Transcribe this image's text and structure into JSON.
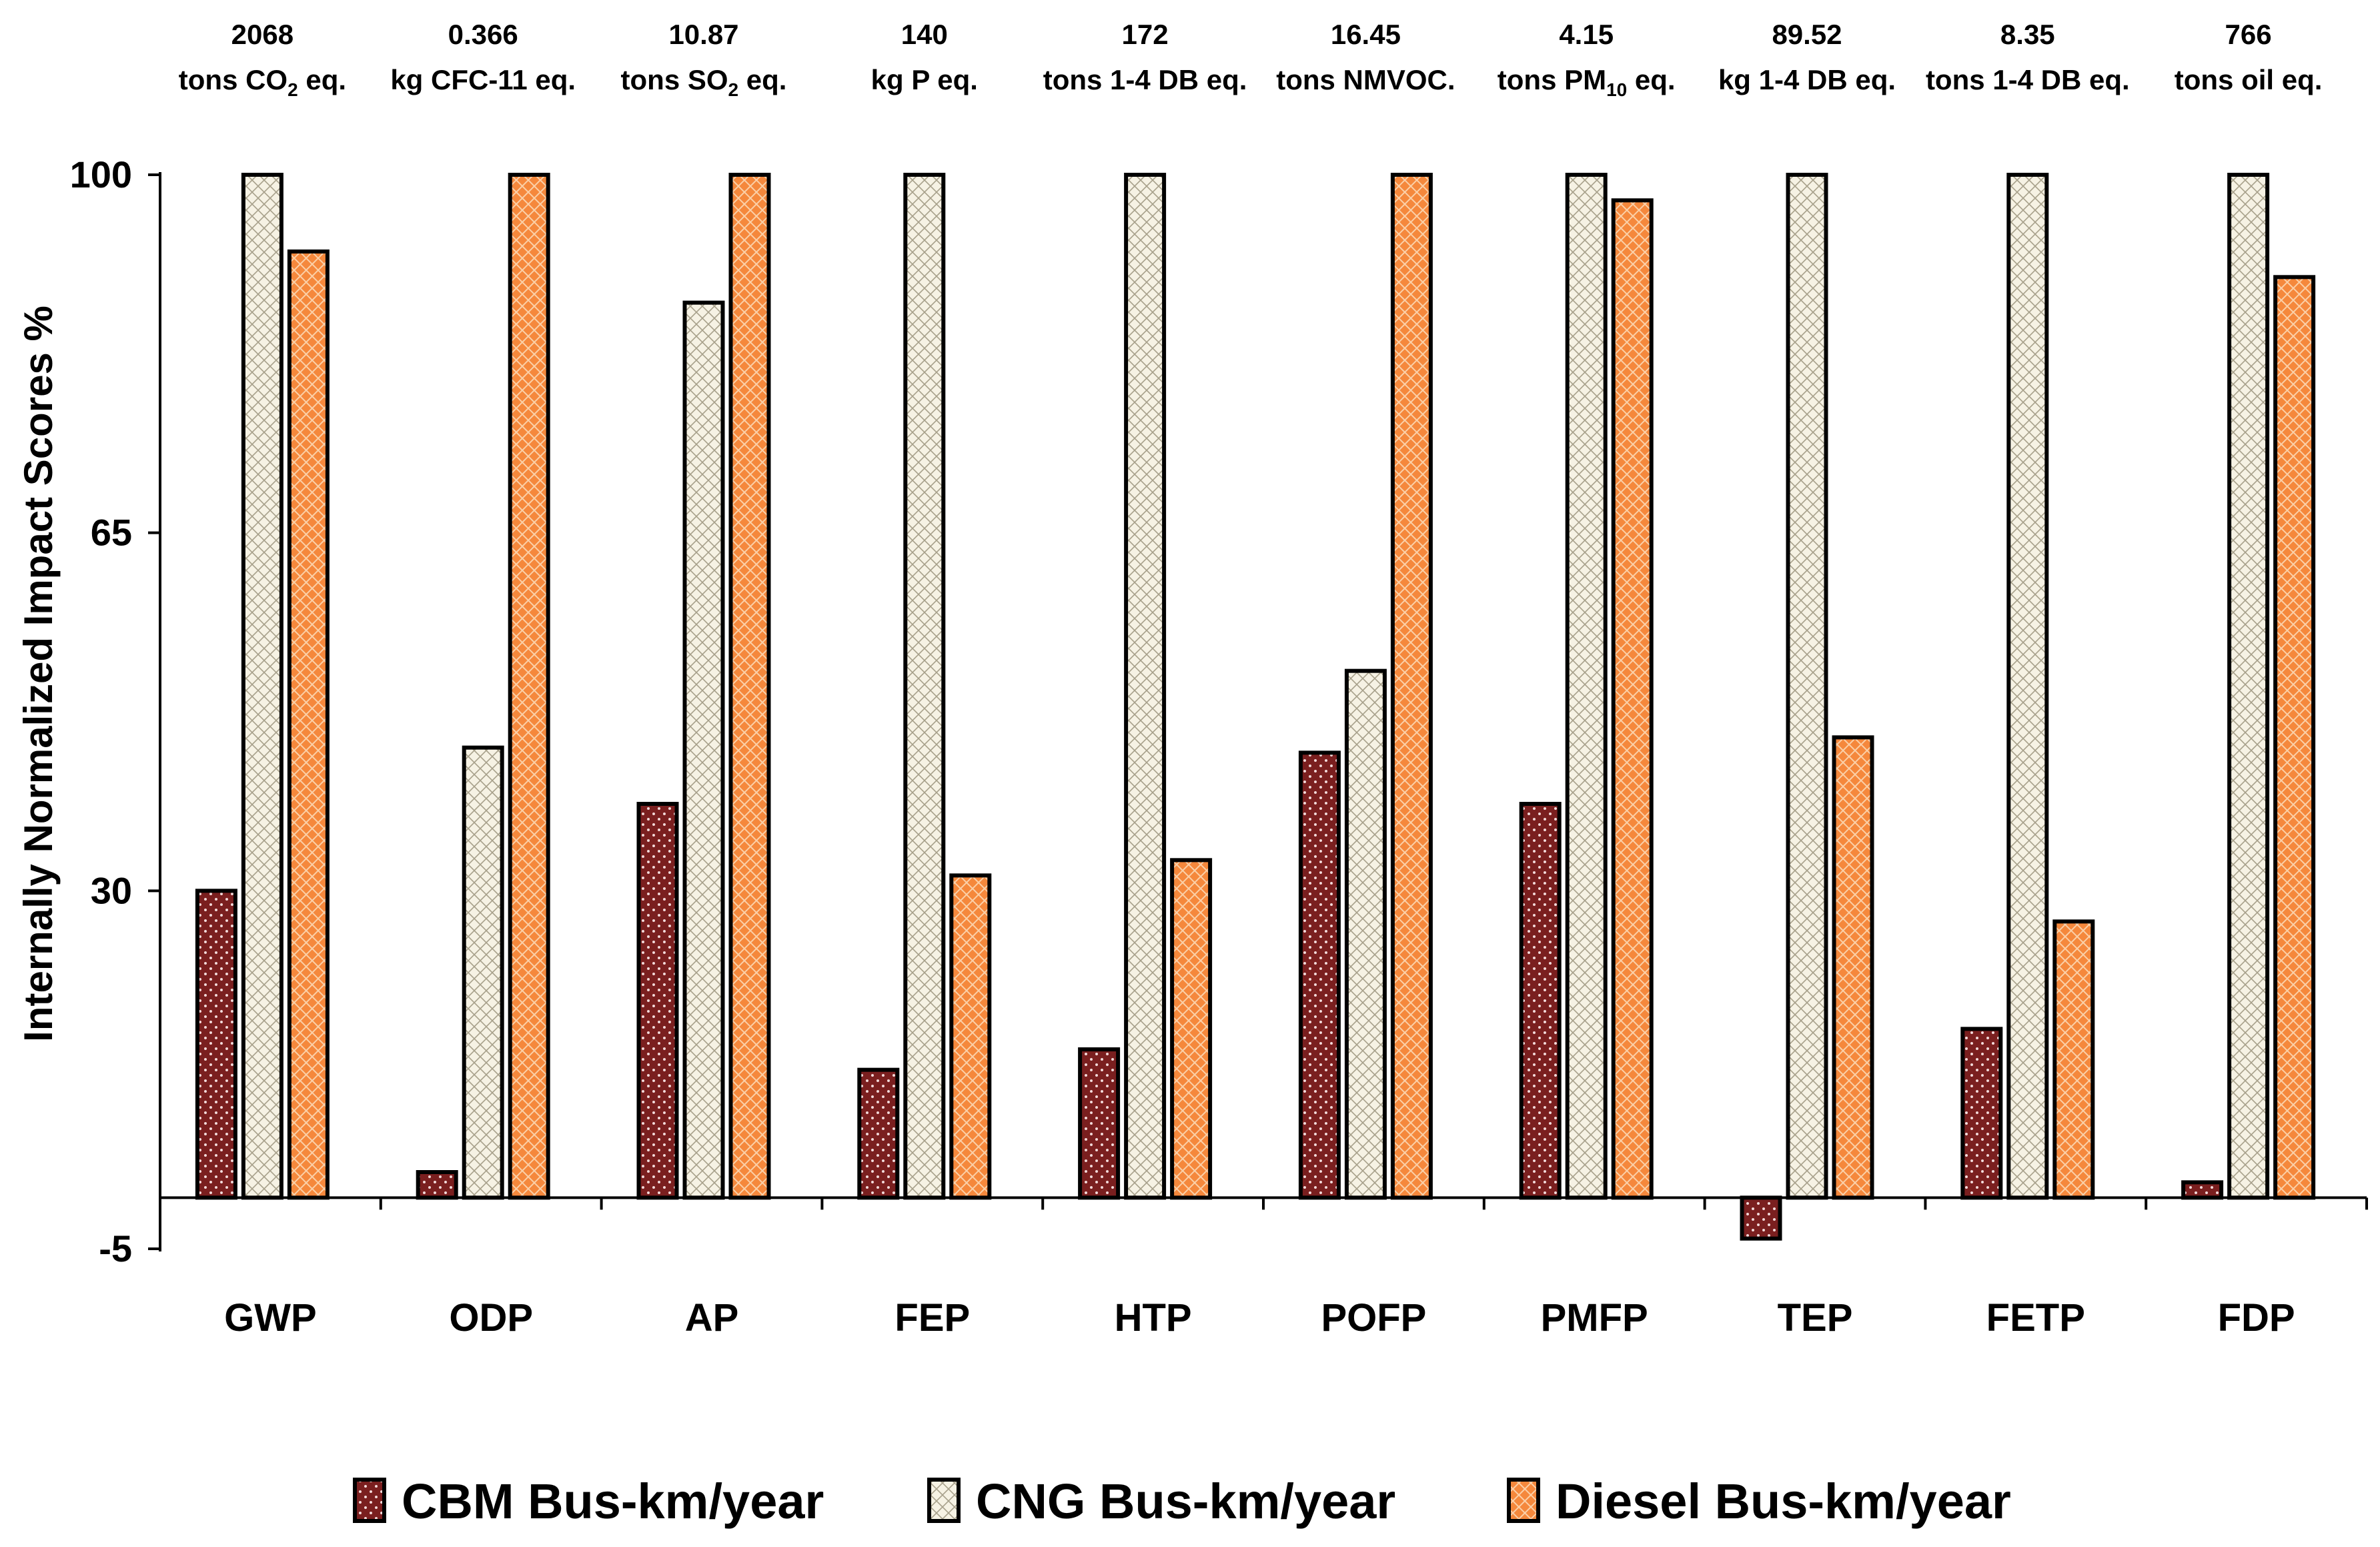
{
  "chart_data": {
    "type": "bar",
    "title": "",
    "xlabel": "",
    "ylabel": "Internally Normalized Impact Scores %",
    "ylim": [
      -5,
      100
    ],
    "yticks": [
      -5,
      30,
      65,
      100
    ],
    "categories": [
      "GWP",
      "ODP",
      "AP",
      "FEP",
      "HTP",
      "POFP",
      "PMFP",
      "TEP",
      "FETP",
      "FDP"
    ],
    "reference_values": [
      {
        "value": "2068",
        "unit_parts": [
          [
            "tons CO",
            "n"
          ],
          [
            "2",
            "sub"
          ],
          [
            " eq.",
            "n"
          ]
        ]
      },
      {
        "value": "0.366",
        "unit_parts": [
          [
            "kg CFC-11 eq.",
            "n"
          ]
        ]
      },
      {
        "value": "10.87",
        "unit_parts": [
          [
            "tons SO",
            "n"
          ],
          [
            "2",
            "sub"
          ],
          [
            " eq.",
            "n"
          ]
        ]
      },
      {
        "value": "140",
        "unit_parts": [
          [
            "kg P eq.",
            "n"
          ]
        ]
      },
      {
        "value": "172",
        "unit_parts": [
          [
            "tons 1-4 DB eq.",
            "n"
          ]
        ]
      },
      {
        "value": "16.45",
        "unit_parts": [
          [
            "tons NMVOC.",
            "n"
          ]
        ]
      },
      {
        "value": "4.15",
        "unit_parts": [
          [
            "tons PM",
            "n"
          ],
          [
            "10",
            "sub"
          ],
          [
            " eq.",
            "n"
          ]
        ]
      },
      {
        "value": "89.52",
        "unit_parts": [
          [
            "kg 1-4 DB eq.",
            "n"
          ]
        ]
      },
      {
        "value": "8.35",
        "unit_parts": [
          [
            "tons 1-4 DB eq.",
            "n"
          ]
        ]
      },
      {
        "value": "766",
        "unit_parts": [
          [
            "tons oil eq.",
            "n"
          ]
        ]
      }
    ],
    "series": [
      {
        "name": "CBM Bus-km/year",
        "key": "cbm",
        "color": "#7a1f1f",
        "values": [
          30,
          2.5,
          38.5,
          12.5,
          14.5,
          43.5,
          38.5,
          -4,
          16.5,
          1.5
        ]
      },
      {
        "name": "CNG Bus-km/year",
        "key": "cng",
        "color": "#f3efe0",
        "values": [
          100,
          44,
          87.5,
          100,
          100,
          51.5,
          100,
          100,
          100,
          100
        ]
      },
      {
        "name": "Diesel Bus-km/year",
        "key": "diesel",
        "color": "#f5883c",
        "values": [
          92.5,
          100,
          100,
          31.5,
          33,
          100,
          97.5,
          45,
          27,
          90
        ]
      }
    ],
    "legend_position": "bottom",
    "grid": false
  }
}
